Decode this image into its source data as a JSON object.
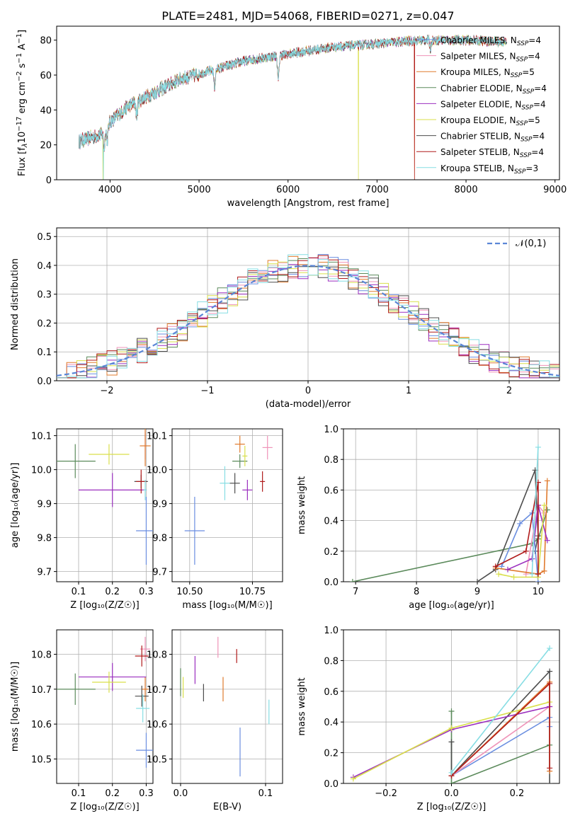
{
  "figure_title": "PLATE=2481, MJD=54068, FIBERID=0271, z=0.047",
  "series_colors": [
    "#6a8ee0",
    "#ef93b8",
    "#e07b2e",
    "#5b8a5b",
    "#9b2fbf",
    "#d9df4b",
    "#4d4d4d",
    "#b01b1b",
    "#86dde3"
  ],
  "legend_entries": [
    {
      "label": "Chabrier MILES, N",
      "sub": "SSP",
      "tail": "=4"
    },
    {
      "label": "Salpeter MILES, N",
      "sub": "SSP",
      "tail": "=4"
    },
    {
      "label": "Kroupa MILES, N",
      "sub": "SSP",
      "tail": "=5"
    },
    {
      "label": "Chabrier ELODIE, N",
      "sub": "SSP",
      "tail": "=4"
    },
    {
      "label": "Salpeter ELODIE, N",
      "sub": "SSP",
      "tail": "=4"
    },
    {
      "label": "Kroupa ELODIE, N",
      "sub": "SSP",
      "tail": "=5"
    },
    {
      "label": "Chabrier STELIB, N",
      "sub": "SSP",
      "tail": "=4"
    },
    {
      "label": "Salpeter STELIB, N",
      "sub": "SSP",
      "tail": "=4"
    },
    {
      "label": "Kroupa STELIB, N",
      "sub": "SSP",
      "tail": "=3"
    }
  ],
  "chart_data": [
    {
      "id": "spectrum",
      "type": "line",
      "xlabel": "wavelength [Angstrom, rest frame]",
      "ylabel_parts": [
        "Flux [f",
        "λ",
        "10",
        "−17",
        " erg cm",
        "−2",
        " s",
        "−1",
        " A",
        "−1",
        "]"
      ],
      "xlim": [
        3400,
        9050
      ],
      "ylim": [
        0,
        88
      ],
      "xticks": [
        4000,
        5000,
        6000,
        7000,
        8000,
        9000
      ],
      "yticks": [
        0,
        20,
        40,
        60,
        80
      ],
      "grid": false,
      "legend_position": "top-right",
      "wavelength_range": [
        3650,
        8450
      ],
      "continuum_anchors": [
        [
          3650,
          22
        ],
        [
          3900,
          26
        ],
        [
          4000,
          33
        ],
        [
          4200,
          42
        ],
        [
          4500,
          50
        ],
        [
          4800,
          58
        ],
        [
          5100,
          62
        ],
        [
          5500,
          68
        ],
        [
          6000,
          72
        ],
        [
          6500,
          76
        ],
        [
          7000,
          78
        ],
        [
          7500,
          80
        ],
        [
          8000,
          80
        ],
        [
          8450,
          79
        ]
      ],
      "absorption_features": [
        [
          3934,
          -10
        ],
        [
          3969,
          -8
        ],
        [
          4300,
          -8
        ],
        [
          5175,
          -10
        ],
        [
          5890,
          -14
        ],
        [
          7600,
          -5
        ]
      ],
      "truncations": [
        {
          "series": 8,
          "wavelength": 3925,
          "to": 0
        },
        {
          "series": 5,
          "wavelength": 3920,
          "to": 0
        },
        {
          "series": 5,
          "wavelength": 6790,
          "to": 0
        },
        {
          "series": 2,
          "wavelength": 7420,
          "to": 0
        },
        {
          "series": 7,
          "wavelength": 7420,
          "to": 0
        }
      ]
    },
    {
      "id": "residuals",
      "type": "histogram",
      "xlabel": "(data-model)/error",
      "ylabel": "Normed distribution",
      "xlim": [
        -2.5,
        2.5
      ],
      "ylim": [
        0,
        0.53
      ],
      "xticks": [
        -2,
        -1,
        0,
        1,
        2
      ],
      "yticks": [
        0.0,
        0.1,
        0.2,
        0.3,
        0.4,
        0.5
      ],
      "grid": true,
      "legend_position": "top-right",
      "legend_label": "𝒩(0,1)",
      "curve": "normal(0,1)",
      "bin_width": 0.1,
      "max_height": 0.5
    },
    {
      "id": "age_vs_Z",
      "type": "errorbar",
      "xlabel": "Z [log₁₀(Z/Z☉)]",
      "ylabel": "age  [log₁₀(age/yr)]",
      "xlim": [
        0.035,
        0.32
      ],
      "ylim": [
        9.67,
        10.12
      ],
      "xticks": [
        0.1,
        0.2,
        0.3
      ],
      "yticks": [
        9.7,
        9.8,
        9.9,
        10.0,
        10.1
      ],
      "grid": true,
      "points": [
        {
          "s": 0,
          "x": 0.3,
          "y": 9.82,
          "xe": 0.03,
          "ye": 0.1
        },
        {
          "s": 1,
          "x": 0.297,
          "y": 10.07,
          "xe": 0.003,
          "ye": 0.04
        },
        {
          "s": 2,
          "x": 0.297,
          "y": 10.07,
          "xe": 0.016,
          "ye": 0.06
        },
        {
          "s": 3,
          "x": 0.09,
          "y": 10.025,
          "xe": 0.06,
          "ye": 0.05
        },
        {
          "s": 4,
          "x": 0.2,
          "y": 9.94,
          "xe": 0.1,
          "ye": 0.05
        },
        {
          "s": 5,
          "x": 0.19,
          "y": 10.045,
          "xe": 0.06,
          "ye": 0.03
        },
        {
          "s": 6,
          "x": 0.285,
          "y": 9.965,
          "xe": 0.02,
          "ye": 0.02
        },
        {
          "s": 7,
          "x": 0.285,
          "y": 9.965,
          "xe": 0.015,
          "ye": 0.035
        },
        {
          "s": 8,
          "x": 0.297,
          "y": 9.94,
          "xe": 0.005,
          "ye": 0.03
        }
      ]
    },
    {
      "id": "age_vs_mass",
      "type": "errorbar",
      "xlabel": "mass [log₁₀(M/M☉)]",
      "ylabel": "",
      "xlim": [
        10.43,
        10.87
      ],
      "ylim": [
        9.67,
        10.12
      ],
      "xticks": [
        10.5,
        10.75
      ],
      "yticks": [
        9.7,
        9.8,
        9.9,
        10.0,
        10.1
      ],
      "grid": true,
      "points": [
        {
          "s": 0,
          "x": 10.52,
          "y": 9.82,
          "xe": 0.04,
          "ye": 0.1
        },
        {
          "s": 1,
          "x": 10.81,
          "y": 10.065,
          "xe": 0.02,
          "ye": 0.035
        },
        {
          "s": 2,
          "x": 10.7,
          "y": 10.075,
          "xe": 0.02,
          "ye": 0.025
        },
        {
          "s": 3,
          "x": 10.7,
          "y": 10.025,
          "xe": 0.03,
          "ye": 0.02
        },
        {
          "s": 4,
          "x": 10.73,
          "y": 9.94,
          "xe": 0.02,
          "ye": 0.03
        },
        {
          "s": 5,
          "x": 10.72,
          "y": 10.04,
          "xe": 0.01,
          "ye": 0.03
        },
        {
          "s": 6,
          "x": 10.68,
          "y": 9.96,
          "xe": 0.02,
          "ye": 0.03
        },
        {
          "s": 7,
          "x": 10.79,
          "y": 9.965,
          "xe": 0.01,
          "ye": 0.03
        },
        {
          "s": 8,
          "x": 10.64,
          "y": 9.96,
          "xe": 0.02,
          "ye": 0.05
        }
      ]
    },
    {
      "id": "massweight_vs_age",
      "type": "line",
      "xlabel": "age  [log₁₀(age/yr)]",
      "ylabel": "mass weight",
      "xlim": [
        6.8,
        10.35
      ],
      "ylim": [
        0,
        1.0
      ],
      "xticks": [
        7,
        8,
        9,
        10
      ],
      "yticks": [
        0.0,
        0.2,
        0.4,
        0.6,
        0.8,
        1.0
      ],
      "grid": true,
      "series": [
        {
          "s": 3,
          "x": [
            6.95,
            9.9,
            10.0,
            10.15
          ],
          "y": [
            0.0,
            0.25,
            0.28,
            0.47
          ]
        },
        {
          "s": 6,
          "x": 9.0,
          "xs": [
            9.0,
            9.3,
            9.95,
            10.0,
            9.95
          ],
          "ys": [
            0.0,
            0.08,
            0.73,
            0.3,
            0.2
          ]
        },
        {
          "s": 0,
          "xs": [
            9.4,
            9.7,
            9.9,
            10.0
          ],
          "ys": [
            0.1,
            0.38,
            0.45,
            0.0
          ]
        },
        {
          "s": 1,
          "xs": [
            9.8,
            10.0,
            10.1
          ],
          "ys": [
            0.05,
            0.5,
            0.45
          ]
        },
        {
          "s": 2,
          "xs": [
            9.3,
            10.0,
            10.1,
            10.15
          ],
          "ys": [
            0.09,
            0.05,
            0.07,
            0.66
          ]
        },
        {
          "s": 4,
          "xs": [
            9.5,
            9.9,
            10.0,
            10.15
          ],
          "ys": [
            0.08,
            0.15,
            0.5,
            0.27
          ]
        },
        {
          "s": 5,
          "xs": [
            9.35,
            9.6,
            10.0,
            10.1
          ],
          "ys": [
            0.05,
            0.03,
            0.03,
            0.5
          ]
        },
        {
          "s": 7,
          "xs": [
            9.3,
            9.8,
            10.0,
            10.0
          ],
          "ys": [
            0.1,
            0.2,
            0.65,
            0.05
          ]
        },
        {
          "s": 8,
          "xs": [
            9.9,
            10.0
          ],
          "ys": [
            0.05,
            0.88
          ]
        }
      ]
    },
    {
      "id": "mass_vs_Z",
      "type": "errorbar",
      "xlabel": "Z [log₁₀(Z/Z☉)]",
      "ylabel": "mass [log₁₀(M/M☉)]",
      "xlim": [
        0.035,
        0.32
      ],
      "ylim": [
        10.43,
        10.87
      ],
      "xticks": [
        0.1,
        0.2,
        0.3
      ],
      "yticks": [
        10.5,
        10.6,
        10.7,
        10.8
      ],
      "grid": true,
      "points": [
        {
          "s": 0,
          "x": 0.3,
          "y": 10.525,
          "xe": 0.03,
          "ye": 0.05
        },
        {
          "s": 1,
          "x": 0.297,
          "y": 10.815,
          "xe": 0.015,
          "ye": 0.035
        },
        {
          "s": 2,
          "x": 0.297,
          "y": 10.7,
          "xe": 0.01,
          "ye": 0.035
        },
        {
          "s": 3,
          "x": 0.09,
          "y": 10.7,
          "xe": 0.06,
          "ye": 0.045
        },
        {
          "s": 4,
          "x": 0.2,
          "y": 10.735,
          "xe": 0.1,
          "ye": 0.04
        },
        {
          "s": 5,
          "x": 0.19,
          "y": 10.72,
          "xe": 0.05,
          "ye": 0.03
        },
        {
          "s": 6,
          "x": 0.287,
          "y": 10.68,
          "xe": 0.02,
          "ye": 0.03
        },
        {
          "s": 7,
          "x": 0.287,
          "y": 10.795,
          "xe": 0.02,
          "ye": 0.03
        },
        {
          "s": 8,
          "x": 0.29,
          "y": 10.645,
          "xe": 0.02,
          "ye": 0.04
        }
      ]
    },
    {
      "id": "mass_vs_ebv",
      "type": "errorbar",
      "xlabel": "E(B-V)",
      "ylabel": "",
      "xlim": [
        -0.01,
        0.12
      ],
      "ylim": [
        10.43,
        10.87
      ],
      "xticks": [
        0.0,
        0.1
      ],
      "yticks": [
        10.5,
        10.6,
        10.7,
        10.8
      ],
      "grid": true,
      "points": [
        {
          "s": 0,
          "x": 0.07,
          "y": 10.52,
          "xe": 0,
          "ye": 0.07
        },
        {
          "s": 1,
          "x": 0.044,
          "y": 10.82,
          "xe": 0,
          "ye": 0.03
        },
        {
          "s": 2,
          "x": 0.05,
          "y": 10.7,
          "xe": 0,
          "ye": 0.035
        },
        {
          "s": 3,
          "x": 0.0,
          "y": 10.72,
          "xe": 0,
          "ye": 0.04
        },
        {
          "s": 4,
          "x": 0.017,
          "y": 10.755,
          "xe": 0,
          "ye": 0.04
        },
        {
          "s": 5,
          "x": 0.003,
          "y": 10.705,
          "xe": 0,
          "ye": 0.03
        },
        {
          "s": 6,
          "x": 0.027,
          "y": 10.69,
          "xe": 0,
          "ye": 0.025
        },
        {
          "s": 7,
          "x": 0.066,
          "y": 10.795,
          "xe": 0,
          "ye": 0.02
        },
        {
          "s": 8,
          "x": 0.104,
          "y": 10.635,
          "xe": 0,
          "ye": 0.035
        }
      ]
    },
    {
      "id": "massweight_vs_Z",
      "type": "line",
      "xlabel": "Z [log₁₀(Z/Z☉)]",
      "ylabel": "mass weight",
      "xlim": [
        -0.33,
        0.33
      ],
      "ylim": [
        0,
        1.0
      ],
      "xticks": [
        -0.2,
        0.0,
        0.2
      ],
      "yticks": [
        0.0,
        0.2,
        0.4,
        0.6,
        0.8,
        1.0
      ],
      "grid": true,
      "series": [
        {
          "s": 3,
          "xs": [
            0.0,
            0.0,
            0.3
          ],
          "ys": [
            0.47,
            0.0,
            0.25
          ]
        },
        {
          "s": 6,
          "xs": [
            0.0,
            0.0,
            0.3,
            0.3
          ],
          "ys": [
            0.27,
            0.05,
            0.73,
            0.0
          ]
        },
        {
          "s": 0,
          "xs": [
            0.0,
            0.3,
            0.3
          ],
          "ys": [
            0.05,
            0.43,
            0.37
          ]
        },
        {
          "s": 1,
          "xs": [
            0.0,
            0.3
          ],
          "ys": [
            0.05,
            0.5
          ]
        },
        {
          "s": 2,
          "xs": [
            0.0,
            0.3,
            0.3
          ],
          "ys": [
            0.05,
            0.66,
            0.08
          ]
        },
        {
          "s": 4,
          "xs": [
            -0.3,
            0.0,
            0.3
          ],
          "ys": [
            0.04,
            0.35,
            0.5
          ]
        },
        {
          "s": 5,
          "xs": [
            -0.3,
            0.0,
            0.3
          ],
          "ys": [
            0.03,
            0.36,
            0.53
          ]
        },
        {
          "s": 7,
          "xs": [
            0.0,
            0.3,
            0.3
          ],
          "ys": [
            0.05,
            0.65,
            0.1
          ]
        },
        {
          "s": 8,
          "xs": [
            0.0,
            0.3
          ],
          "ys": [
            0.07,
            0.88
          ]
        }
      ]
    }
  ]
}
